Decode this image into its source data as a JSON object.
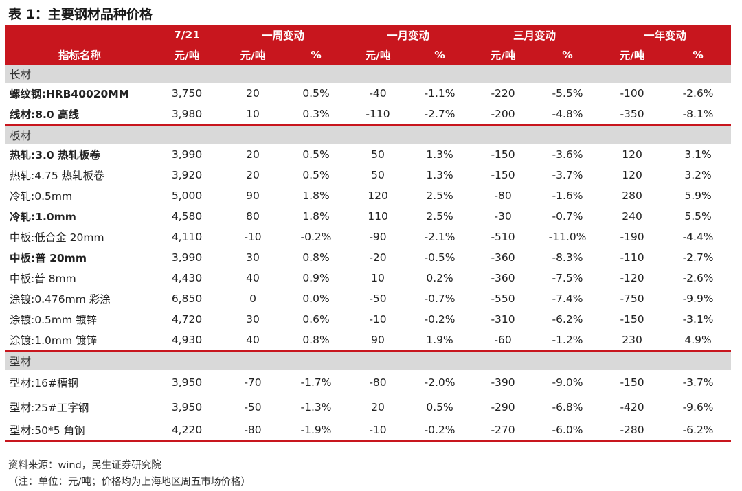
{
  "title": "表 1：主要钢材品种价格",
  "header": {
    "row1": [
      "",
      "7/21",
      "一周变动",
      "一月变动",
      "三月变动",
      "一年变动"
    ],
    "row2": [
      "指标名称",
      "元/吨",
      "元/吨",
      "%",
      "元/吨",
      "%",
      "元/吨",
      "%",
      "元/吨",
      "%"
    ]
  },
  "chart_data": {
    "type": "table",
    "title": "表 1：主要钢材品种价格",
    "columns": [
      "指标名称",
      "7/21 元/吨",
      "一周变动 元/吨",
      "一周变动 %",
      "一月变动 元/吨",
      "一月变动 %",
      "三月变动 元/吨",
      "三月变动 %",
      "一年变动 元/吨",
      "一年变动 %"
    ],
    "groups": [
      {
        "name": "长材",
        "rows": [
          {
            "name": "螺纹钢:HRB40020MM",
            "bold": true,
            "values": [
              "3,750",
              "20",
              "0.5%",
              "-40",
              "-1.1%",
              "-220",
              "-5.5%",
              "-100",
              "-2.6%"
            ]
          },
          {
            "name": "线材:8.0 高线",
            "bold": true,
            "values": [
              "3,980",
              "10",
              "0.3%",
              "-110",
              "-2.7%",
              "-200",
              "-4.8%",
              "-350",
              "-8.1%"
            ]
          }
        ]
      },
      {
        "name": "板材",
        "rows": [
          {
            "name": "热轧:3.0 热轧板卷",
            "bold": true,
            "values": [
              "3,990",
              "20",
              "0.5%",
              "50",
              "1.3%",
              "-150",
              "-3.6%",
              "120",
              "3.1%"
            ]
          },
          {
            "name": "热轧:4.75 热轧板卷",
            "bold": false,
            "values": [
              "3,920",
              "20",
              "0.5%",
              "50",
              "1.3%",
              "-150",
              "-3.7%",
              "120",
              "3.2%"
            ]
          },
          {
            "name": "冷轧:0.5mm",
            "bold": false,
            "values": [
              "5,000",
              "90",
              "1.8%",
              "120",
              "2.5%",
              "-80",
              "-1.6%",
              "280",
              "5.9%"
            ]
          },
          {
            "name": "冷轧:1.0mm",
            "bold": true,
            "values": [
              "4,580",
              "80",
              "1.8%",
              "110",
              "2.5%",
              "-30",
              "-0.7%",
              "240",
              "5.5%"
            ]
          },
          {
            "name": "中板:低合金 20mm",
            "bold": false,
            "values": [
              "4,110",
              "-10",
              "-0.2%",
              "-90",
              "-2.1%",
              "-510",
              "-11.0%",
              "-190",
              "-4.4%"
            ]
          },
          {
            "name": "中板:普 20mm",
            "bold": true,
            "values": [
              "3,990",
              "30",
              "0.8%",
              "-20",
              "-0.5%",
              "-360",
              "-8.3%",
              "-110",
              "-2.7%"
            ]
          },
          {
            "name": "中板:普 8mm",
            "bold": false,
            "values": [
              "4,430",
              "40",
              "0.9%",
              "10",
              "0.2%",
              "-360",
              "-7.5%",
              "-120",
              "-2.6%"
            ]
          },
          {
            "name": "涂镀:0.476mm 彩涂",
            "bold": false,
            "values": [
              "6,850",
              "0",
              "0.0%",
              "-50",
              "-0.7%",
              "-550",
              "-7.4%",
              "-750",
              "-9.9%"
            ]
          },
          {
            "name": "涂镀:0.5mm 镀锌",
            "bold": false,
            "values": [
              "4,720",
              "30",
              "0.6%",
              "-10",
              "-0.2%",
              "-310",
              "-6.2%",
              "-150",
              "-3.1%"
            ]
          },
          {
            "name": "涂镀:1.0mm 镀锌",
            "bold": false,
            "values": [
              "4,930",
              "40",
              "0.8%",
              "90",
              "1.9%",
              "-60",
              "-1.2%",
              "230",
              "4.9%"
            ]
          }
        ]
      },
      {
        "name": "型材",
        "rows": [
          {
            "name": "型材:16#槽钢",
            "bold": false,
            "values": [
              "3,950",
              "-70",
              "-1.7%",
              "-80",
              "-2.0%",
              "-390",
              "-9.0%",
              "-150",
              "-3.7%"
            ]
          },
          {
            "name": "型材:25#工字钢",
            "bold": false,
            "values": [
              "3,950",
              "-50",
              "-1.3%",
              "20",
              "0.5%",
              "-290",
              "-6.8%",
              "-420",
              "-9.6%"
            ]
          },
          {
            "name": "型材:50*5 角钢",
            "bold": false,
            "values": [
              "4,220",
              "-80",
              "-1.9%",
              "-10",
              "-0.2%",
              "-270",
              "-6.0%",
              "-280",
              "-6.2%"
            ]
          }
        ]
      }
    ]
  },
  "footer": {
    "source": "资料来源：wind，民生证券研究院",
    "note": "（注：单位：元/吨；价格均为上海地区周五市场价格）"
  },
  "colors": {
    "header_bg": "#c8161e",
    "header_text": "#ffffff",
    "category_bg": "#d9d9d9",
    "rule": "#c8161e"
  }
}
